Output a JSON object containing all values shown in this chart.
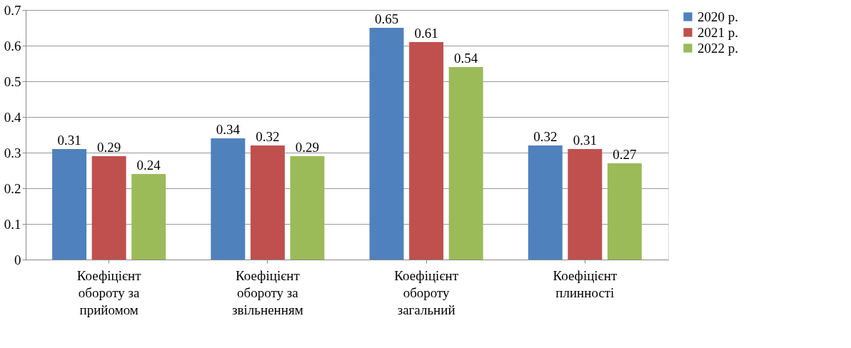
{
  "chart_data": {
    "type": "bar",
    "categories": [
      "Коефіцієнт обороту за прийомом",
      "Коефіцієнт обороту за звільненням",
      "Коефіцієнт обороту загальний",
      "Коефіцієнт плинності"
    ],
    "series": [
      {
        "name": "2020 р.",
        "color": "#4f81bd",
        "values": [
          0.31,
          0.34,
          0.65,
          0.32
        ]
      },
      {
        "name": "2021 р.",
        "color": "#c0504d",
        "values": [
          0.29,
          0.32,
          0.61,
          0.31
        ]
      },
      {
        "name": "2022 р.",
        "color": "#9bbb59",
        "values": [
          0.24,
          0.29,
          0.54,
          0.27
        ]
      }
    ],
    "ylim": [
      0,
      0.7
    ],
    "yticks": [
      0,
      0.1,
      0.2,
      0.3,
      0.4,
      0.5,
      0.6,
      0.7
    ],
    "grid": "y",
    "legend": "right",
    "data_labels": true
  }
}
